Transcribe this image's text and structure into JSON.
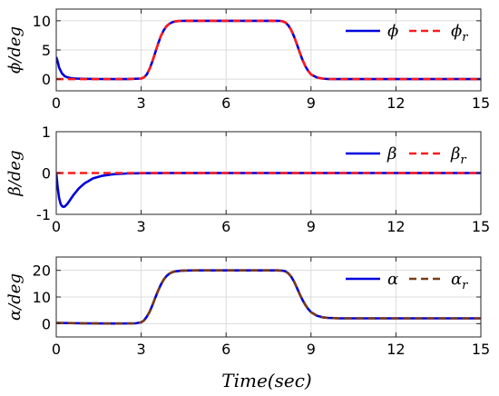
{
  "figure": {
    "xlabel": "Time(sec)"
  },
  "chart_data": [
    {
      "type": "line",
      "ylabel": "ϕ/deg",
      "xlim": [
        0,
        15
      ],
      "ylim": [
        -2,
        12
      ],
      "xticks": [
        0,
        3,
        6,
        9,
        12,
        15
      ],
      "xtick_labels": [
        "0",
        "3",
        "6",
        "9",
        "12",
        "15"
      ],
      "yticks": [
        0,
        5,
        10
      ],
      "ytick_labels": [
        "0",
        "5",
        "10"
      ],
      "grid": true,
      "legend_position": "top-right",
      "legend": [
        {
          "symbol": "ϕ",
          "subscript": ""
        },
        {
          "symbol": "ϕ",
          "subscript": "r"
        }
      ],
      "series": [
        {
          "name": "ϕ",
          "color": "#0000dd",
          "dash": "solid",
          "x": [
            0,
            0.05,
            0.1,
            0.2,
            0.3,
            0.4,
            0.5,
            0.7,
            1.0,
            1.5,
            2.0,
            2.5,
            3.0,
            3.1,
            3.2,
            3.3,
            3.4,
            3.5,
            3.6,
            3.7,
            3.8,
            3.9,
            4.0,
            4.1,
            4.2,
            4.3,
            4.4,
            4.6,
            4.8,
            5.0,
            6.0,
            7.0,
            7.5,
            7.8,
            7.9,
            8.0,
            8.1,
            8.2,
            8.3,
            8.4,
            8.5,
            8.6,
            8.7,
            8.8,
            8.9,
            9.0,
            9.2,
            9.4,
            9.6,
            10,
            12,
            15
          ],
          "y": [
            3.8,
            3.0,
            2.0,
            1.0,
            0.5,
            0.3,
            0.2,
            0.1,
            0.05,
            0.02,
            0.0,
            0.0,
            0.1,
            0.3,
            0.8,
            1.8,
            3.1,
            4.6,
            6.1,
            7.4,
            8.4,
            9.1,
            9.5,
            9.75,
            9.88,
            9.94,
            9.97,
            9.99,
            10,
            10,
            10,
            10,
            10,
            9.99,
            9.97,
            9.9,
            9.7,
            9.2,
            8.4,
            7.3,
            6.0,
            4.6,
            3.3,
            2.2,
            1.4,
            0.8,
            0.3,
            0.1,
            0.03,
            0,
            0,
            0
          ]
        },
        {
          "name": "ϕ_r",
          "color": "#ff1a1a",
          "dash": "dashed",
          "x": [
            0,
            2.0,
            2.5,
            3.0,
            3.1,
            3.2,
            3.3,
            3.4,
            3.5,
            3.6,
            3.7,
            3.8,
            3.9,
            4.0,
            4.1,
            4.2,
            4.3,
            4.4,
            4.6,
            4.8,
            5.0,
            6.0,
            7.0,
            7.5,
            7.8,
            7.9,
            8.0,
            8.1,
            8.2,
            8.3,
            8.4,
            8.5,
            8.6,
            8.7,
            8.8,
            8.9,
            9.0,
            9.2,
            9.4,
            9.6,
            10,
            12,
            15
          ],
          "y": [
            0,
            0,
            0,
            0.1,
            0.3,
            0.8,
            1.8,
            3.1,
            4.6,
            6.1,
            7.4,
            8.4,
            9.1,
            9.5,
            9.75,
            9.88,
            9.94,
            9.97,
            9.99,
            10,
            10,
            10,
            10,
            10,
            9.99,
            9.97,
            9.9,
            9.7,
            9.2,
            8.4,
            7.3,
            6.0,
            4.6,
            3.3,
            2.2,
            1.4,
            0.8,
            0.3,
            0.1,
            0.03,
            0,
            0,
            0
          ]
        }
      ]
    },
    {
      "type": "line",
      "ylabel": "β/deg",
      "xlim": [
        0,
        15
      ],
      "ylim": [
        -1,
        1
      ],
      "xticks": [
        0,
        3,
        6,
        9,
        12,
        15
      ],
      "xtick_labels": [
        "0",
        "3",
        "6",
        "9",
        "12",
        "15"
      ],
      "yticks": [
        -1,
        0,
        1
      ],
      "ytick_labels": [
        "-1",
        "0",
        "1"
      ],
      "grid": true,
      "legend_position": "top-right",
      "legend": [
        {
          "symbol": "β",
          "subscript": ""
        },
        {
          "symbol": "β",
          "subscript": "r"
        }
      ],
      "series": [
        {
          "name": "β",
          "color": "#0000dd",
          "dash": "solid",
          "x": [
            0,
            0.05,
            0.1,
            0.15,
            0.2,
            0.25,
            0.3,
            0.4,
            0.5,
            0.6,
            0.8,
            1.0,
            1.3,
            1.6,
            2.0,
            2.5,
            3.0,
            4.0,
            6.0,
            9.0,
            12,
            15
          ],
          "y": [
            0,
            -0.35,
            -0.6,
            -0.74,
            -0.8,
            -0.82,
            -0.81,
            -0.74,
            -0.64,
            -0.54,
            -0.37,
            -0.25,
            -0.13,
            -0.07,
            -0.03,
            -0.01,
            -0.005,
            0,
            0,
            0,
            0,
            0
          ]
        },
        {
          "name": "β_r",
          "color": "#ff1a1a",
          "dash": "dashed",
          "x": [
            0,
            15
          ],
          "y": [
            0,
            0
          ]
        }
      ]
    },
    {
      "type": "line",
      "ylabel": "α/deg",
      "xlim": [
        0,
        15
      ],
      "ylim": [
        -5,
        25
      ],
      "xticks": [
        0,
        3,
        6,
        9,
        12,
        15
      ],
      "xtick_labels": [
        "0",
        "3",
        "6",
        "9",
        "12",
        "15"
      ],
      "yticks": [
        0,
        10,
        20
      ],
      "ytick_labels": [
        "0",
        "10",
        "20"
      ],
      "grid": true,
      "legend_position": "top-right",
      "legend": [
        {
          "symbol": "α",
          "subscript": ""
        },
        {
          "symbol": "α",
          "subscript": "r"
        }
      ],
      "series": [
        {
          "name": "α",
          "color": "#0000dd",
          "dash": "solid",
          "x": [
            0,
            1.0,
            2.0,
            2.8,
            3.0,
            3.1,
            3.2,
            3.3,
            3.4,
            3.5,
            3.6,
            3.7,
            3.8,
            3.9,
            4.0,
            4.1,
            4.2,
            4.4,
            4.6,
            5.0,
            6.0,
            7.0,
            7.8,
            8.0,
            8.1,
            8.2,
            8.3,
            8.4,
            8.5,
            8.6,
            8.7,
            8.8,
            8.9,
            9.0,
            9.2,
            9.4,
            9.6,
            10,
            12,
            15
          ],
          "y": [
            0.3,
            0.1,
            0.05,
            0.1,
            0.5,
            1.2,
            2.6,
            4.5,
            7.0,
            9.8,
            12.4,
            14.7,
            16.6,
            17.9,
            18.8,
            19.3,
            19.6,
            19.85,
            19.95,
            20,
            20,
            20,
            20,
            19.9,
            19.6,
            18.9,
            17.6,
            15.8,
            13.5,
            11.1,
            8.9,
            7.0,
            5.5,
            4.3,
            3.0,
            2.4,
            2.15,
            2.0,
            2.0,
            2.0
          ]
        },
        {
          "name": "α_r",
          "color": "#7a3a18",
          "dash": "dashed",
          "x": [
            0,
            1.0,
            2.0,
            2.8,
            3.0,
            3.1,
            3.2,
            3.3,
            3.4,
            3.5,
            3.6,
            3.7,
            3.8,
            3.9,
            4.0,
            4.1,
            4.2,
            4.4,
            4.6,
            5.0,
            6.0,
            7.0,
            7.8,
            8.0,
            8.1,
            8.2,
            8.3,
            8.4,
            8.5,
            8.6,
            8.7,
            8.8,
            8.9,
            9.0,
            9.2,
            9.4,
            9.6,
            10,
            12,
            15
          ],
          "y": [
            0.3,
            0.1,
            0.05,
            0.1,
            0.5,
            1.2,
            2.6,
            4.5,
            7.0,
            9.8,
            12.4,
            14.7,
            16.6,
            17.9,
            18.8,
            19.3,
            19.6,
            19.85,
            19.95,
            20,
            20,
            20,
            20,
            19.9,
            19.6,
            18.9,
            17.6,
            15.8,
            13.5,
            11.1,
            8.9,
            7.0,
            5.5,
            4.3,
            3.0,
            2.4,
            2.15,
            2.0,
            2.0,
            2.0
          ]
        }
      ]
    }
  ]
}
